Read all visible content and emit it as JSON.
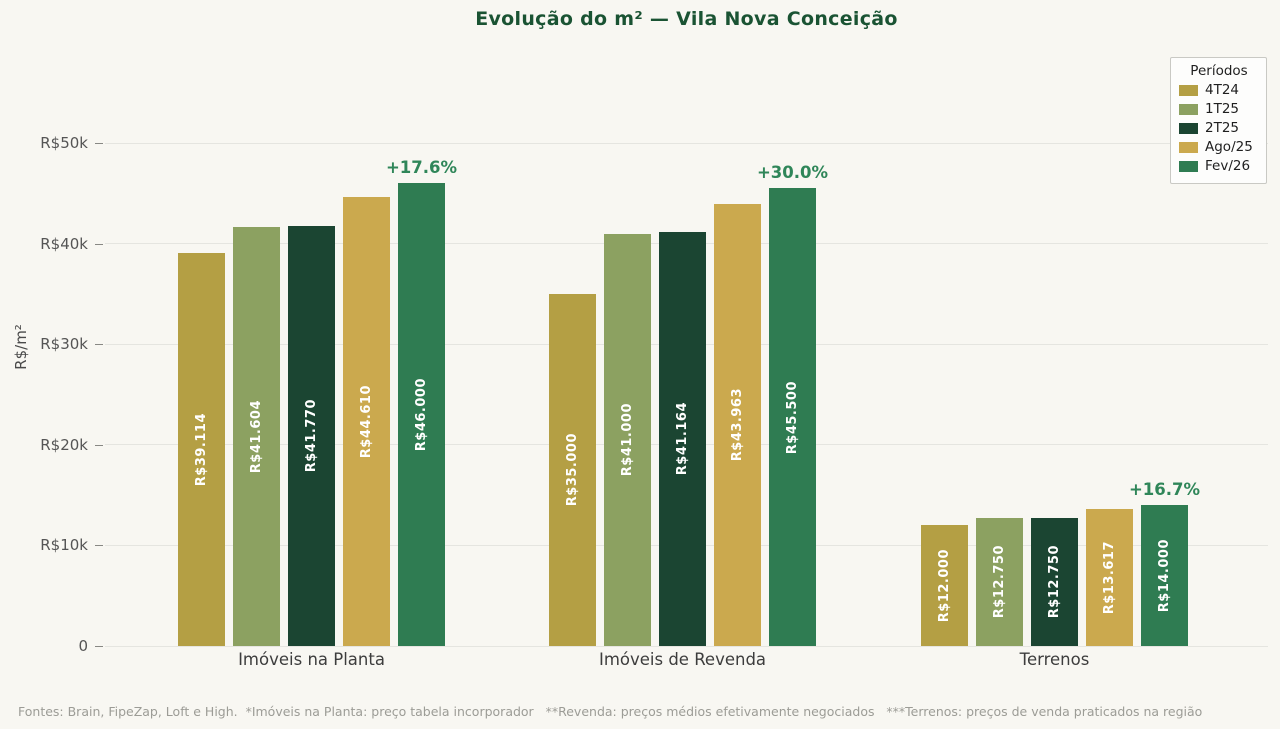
{
  "footer_note": "Fontes: Brain, FipeZap, Loft e High.  *Imóveis na Planta: preço tabela incorporador   **Revenda: preços médios efetivamente negociados   ***Terrenos: preços de venda praticados na região",
  "chart_data": {
    "type": "bar",
    "title": "Evolução do m² — Vila Nova Conceição",
    "xlabel": "",
    "ylabel": "R$/m²",
    "ylim": [
      0,
      55000
    ],
    "grid": true,
    "legend_title": "Períodos",
    "legend_position": "upper right",
    "categories": [
      "Imóveis na Planta",
      "Imóveis de Revenda",
      "Terrenos"
    ],
    "series": [
      {
        "name": "4T24",
        "color": "#b49f44",
        "values": [
          39114,
          35000,
          12000
        ],
        "labels": [
          "R$39.114",
          "R$35.000",
          "R$12.000"
        ]
      },
      {
        "name": "1T25",
        "color": "#8ca161",
        "values": [
          41604,
          41000,
          12750
        ],
        "labels": [
          "R$41.604",
          "R$41.000",
          "R$12.750"
        ]
      },
      {
        "name": "2T25",
        "color": "#1b4532",
        "values": [
          41770,
          41164,
          12750
        ],
        "labels": [
          "R$41.770",
          "R$41.164",
          "R$12.750"
        ]
      },
      {
        "name": "Ago/25",
        "color": "#cba94e",
        "values": [
          44610,
          43963,
          13617
        ],
        "labels": [
          "R$44.610",
          "R$43.963",
          "R$13.617"
        ]
      },
      {
        "name": "Fev/26",
        "color": "#2f7c52",
        "values": [
          46000,
          45500,
          14000
        ],
        "labels": [
          "R$46.000",
          "R$45.500",
          "R$14.000"
        ]
      }
    ],
    "annotations": [
      {
        "category_index": 0,
        "text": "+17.6%"
      },
      {
        "category_index": 1,
        "text": "+30.0%"
      },
      {
        "category_index": 2,
        "text": "+16.7%"
      }
    ],
    "yticks": [
      {
        "value": 0,
        "label": "0"
      },
      {
        "value": 10000,
        "label": "R$10k"
      },
      {
        "value": 20000,
        "label": "R$20k"
      },
      {
        "value": 30000,
        "label": "R$30k"
      },
      {
        "value": 40000,
        "label": "R$40k"
      },
      {
        "value": 50000,
        "label": "R$50k"
      }
    ],
    "colors": {
      "title": "#1a5333",
      "annotation": "#2f8659",
      "background": "#f8f7f2",
      "grid": "#e5e5e0",
      "tick_label": "#555555",
      "bar_label": "#ffffff"
    }
  }
}
